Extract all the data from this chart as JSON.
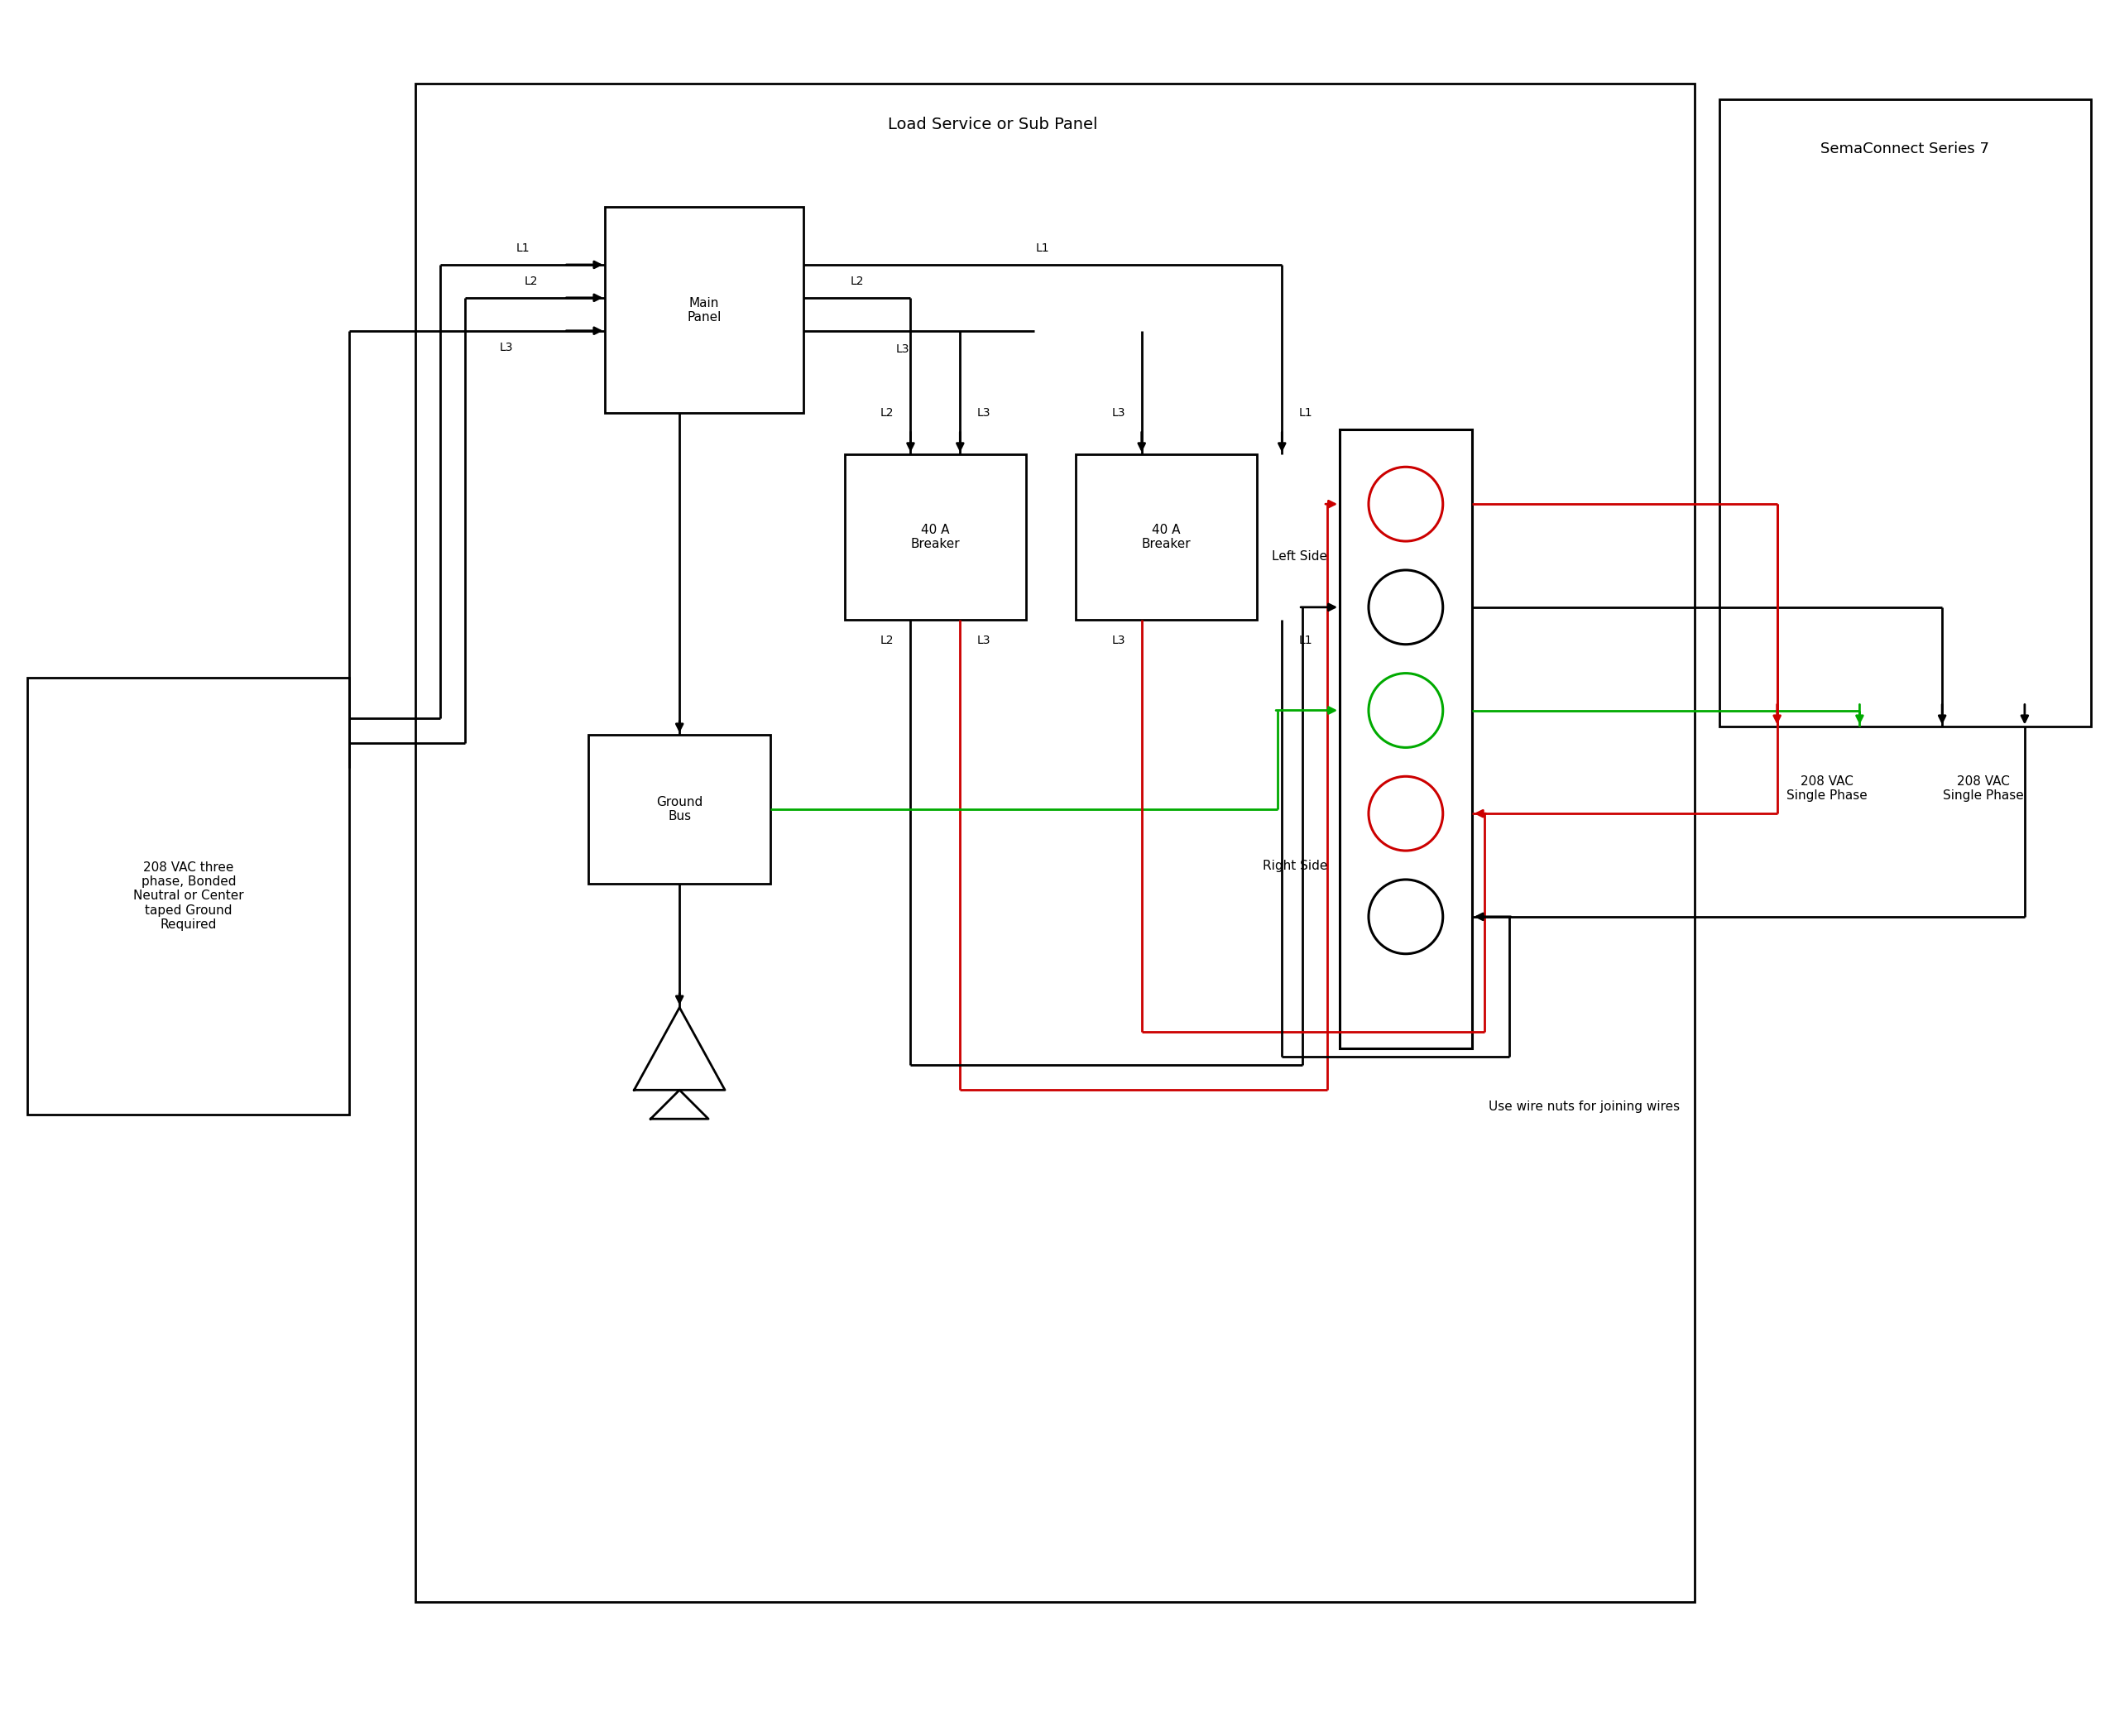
{
  "bg_color": "#ffffff",
  "lc": "#000000",
  "rc": "#cc0000",
  "gc": "#00aa00",
  "panel_title": "Load Service or Sub Panel",
  "sema_title": "SemaConnect Series 7",
  "vac_box_text": "208 VAC three\nphase, Bonded\nNeutral or Center\ntaped Ground\nRequired",
  "ground_bus_text": "Ground\nBus",
  "main_panel_text": "Main\nPanel",
  "breaker1_text": "40 A\nBreaker",
  "breaker2_text": "40 A\nBreaker",
  "left_side_text": "Left Side",
  "right_side_text": "Right Side",
  "wire_nuts_text": "Use wire nuts for joining wires",
  "vac_label1": "208 VAC\nSingle Phase",
  "vac_label2": "208 VAC\nSingle Phase",
  "lw": 2.0
}
